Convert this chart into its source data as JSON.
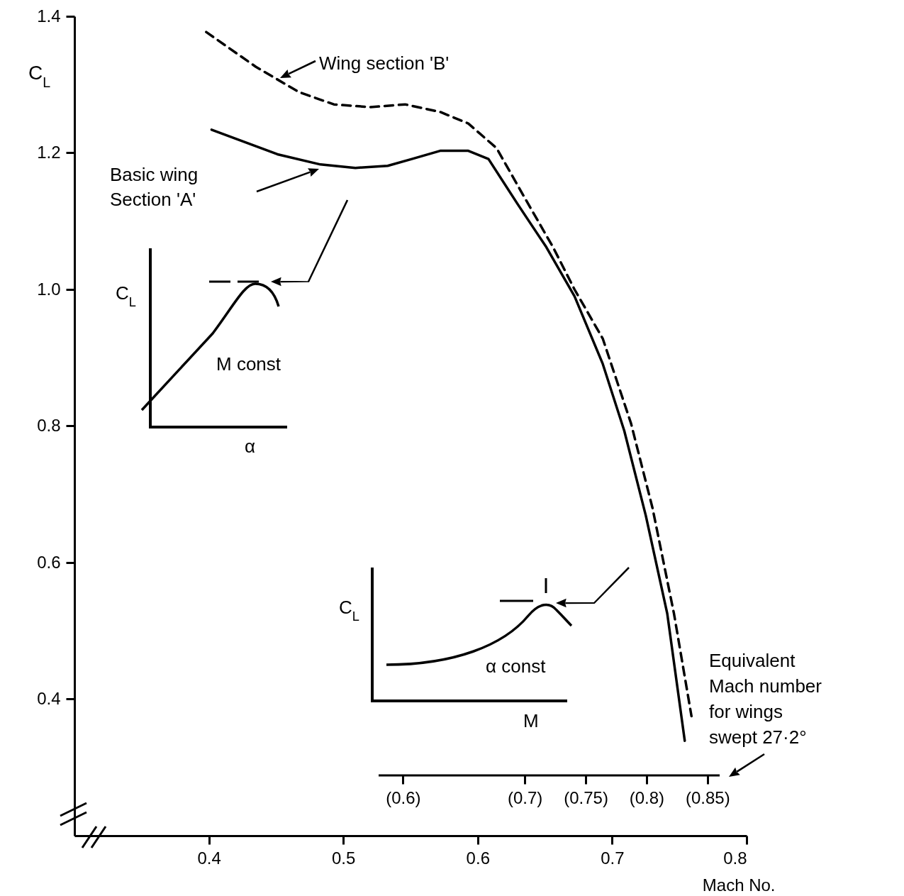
{
  "chart_data": {
    "type": "line",
    "xlabel": "Mach No.",
    "ylabel": "C$_{L}$",
    "x2label": "Equivalent Mach number for wings swept 27·2°",
    "xlim": [
      0.3,
      0.8
    ],
    "xticks": [
      0.4,
      0.5,
      0.6,
      0.7,
      0.8
    ],
    "ylim": [
      0.2,
      1.4
    ],
    "yticks": [
      0.4,
      0.6,
      0.8,
      {
        "value": 1.0,
        "label": "1.0"
      },
      1.2,
      1.4
    ],
    "x2lim": [
      0.58,
      0.86
    ],
    "x2ticks": [
      {
        "value": 0.6,
        "label": "(0.6)"
      },
      {
        "value": 0.7,
        "label": "(0.7)"
      },
      {
        "value": 0.75,
        "label": "(0.75)"
      },
      {
        "value": 0.8,
        "label": "(0.8)"
      },
      {
        "value": 0.85,
        "label": "(0.85)"
      }
    ],
    "marker": "none",
    "series": [
      {
        "name": "Basic wing Section 'A'",
        "color": "#000000",
        "line_style": "solid",
        "x": [
          0.402,
          0.451,
          0.483,
          0.509,
          0.533,
          0.551,
          0.572,
          0.593,
          0.608,
          0.63,
          0.651,
          0.672,
          0.693,
          0.709,
          0.725,
          0.741,
          0.754
        ],
        "values": [
          1.234,
          1.198,
          1.183,
          1.178,
          1.181,
          1.191,
          1.203,
          1.203,
          1.191,
          1.124,
          1.062,
          0.99,
          0.891,
          0.793,
          0.669,
          0.525,
          0.339
        ]
      },
      {
        "name": "Wing section 'B'",
        "color": "#000000",
        "line_style": "dashed",
        "x": [
          0.398,
          0.435,
          0.467,
          0.493,
          0.52,
          0.546,
          0.572,
          0.593,
          0.614,
          0.635,
          0.656,
          0.672,
          0.693,
          0.714,
          0.73,
          0.746,
          0.759
        ],
        "values": [
          1.377,
          1.326,
          1.289,
          1.271,
          1.267,
          1.271,
          1.26,
          1.243,
          1.207,
          1.134,
          1.062,
          1.0,
          0.928,
          0.804,
          0.68,
          0.525,
          0.375
        ]
      }
    ],
    "annotations": [
      "C$_{L}$",
      "M const",
      "α",
      "C$_{L}$",
      "α const",
      "M"
    ]
  }
}
